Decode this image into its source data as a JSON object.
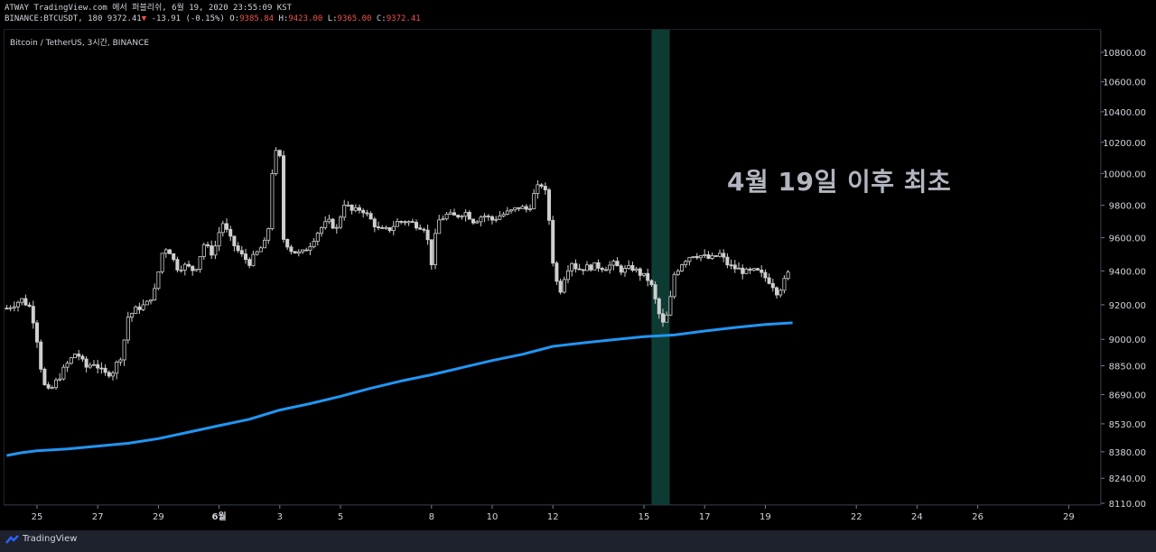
{
  "header": {
    "line1": "ATWAY TradingView.com 에서 퍼블리쉬, 6월 19, 2020 23:55:09 KST",
    "symbol": "BINANCE:BTCUSDT, 180",
    "last": "9372.41",
    "change_arrow": "▼",
    "change": "-13.91 (-0.15%)",
    "o_label": "O:",
    "o_val": "9385.84",
    "h_label": "H:",
    "h_val": "9423.00",
    "l_label": "L:",
    "l_val": "9365.00",
    "c_label": "C:",
    "c_val": "9372.41"
  },
  "pane_title": "Bitcoin / TetherUS, 3시간, BINANCE",
  "annotation": "4월 19일 이후 최초",
  "footer": {
    "brand": "TradingView"
  },
  "colors": {
    "background": "#000000",
    "candle_body": "#cfcfcf",
    "moving_average": "#2196f3",
    "highlight_band": "#0d3b34",
    "down": "#ef5350"
  },
  "chart_data": {
    "type": "candlestick",
    "interval": "3시간",
    "y_axis": {
      "ticks": [
        10800,
        10600,
        10400,
        10200,
        10000,
        9800,
        9600,
        9400,
        9200,
        9000,
        8850,
        8690,
        8530,
        8380,
        8240,
        8110
      ],
      "scale": "log"
    },
    "x_axis": {
      "ticks": [
        {
          "label": "25",
          "day": 25
        },
        {
          "label": "27",
          "day": 27
        },
        {
          "label": "29",
          "day": 29
        },
        {
          "label": "6월",
          "day": 31,
          "bold": true
        },
        {
          "label": "3",
          "day": 33
        },
        {
          "label": "5",
          "day": 35
        },
        {
          "label": "8",
          "day": 38
        },
        {
          "label": "10",
          "day": 40
        },
        {
          "label": "12",
          "day": 42
        },
        {
          "label": "15",
          "day": 45
        },
        {
          "label": "17",
          "day": 47
        },
        {
          "label": "19",
          "day": 49
        },
        {
          "label": "22",
          "day": 52
        },
        {
          "label": "24",
          "day": 54
        },
        {
          "label": "26",
          "day": 56
        },
        {
          "label": "29",
          "day": 59
        }
      ]
    },
    "highlight": {
      "from_day": 45.25,
      "to_day": 45.85
    },
    "close_path": [
      [
        24.0,
        9180
      ],
      [
        24.5,
        9230
      ],
      [
        24.8,
        9180
      ],
      [
        25.0,
        9000
      ],
      [
        25.2,
        8750
      ],
      [
        25.4,
        8700
      ],
      [
        25.7,
        8780
      ],
      [
        26.0,
        8860
      ],
      [
        26.3,
        8930
      ],
      [
        26.6,
        8840
      ],
      [
        26.9,
        8870
      ],
      [
        27.2,
        8800
      ],
      [
        27.5,
        8820
      ],
      [
        27.8,
        8920
      ],
      [
        28.0,
        9130
      ],
      [
        28.3,
        9180
      ],
      [
        28.6,
        9200
      ],
      [
        28.9,
        9290
      ],
      [
        29.1,
        9500
      ],
      [
        29.3,
        9550
      ],
      [
        29.6,
        9420
      ],
      [
        29.9,
        9430
      ],
      [
        30.2,
        9400
      ],
      [
        30.5,
        9560
      ],
      [
        30.8,
        9500
      ],
      [
        31.1,
        9700
      ],
      [
        31.4,
        9580
      ],
      [
        31.7,
        9500
      ],
      [
        32.0,
        9450
      ],
      [
        32.3,
        9520
      ],
      [
        32.6,
        9590
      ],
      [
        32.8,
        10150
      ],
      [
        33.0,
        10100
      ],
      [
        33.1,
        9600
      ],
      [
        33.4,
        9520
      ],
      [
        33.7,
        9500
      ],
      [
        34.0,
        9560
      ],
      [
        34.3,
        9650
      ],
      [
        34.6,
        9700
      ],
      [
        34.9,
        9650
      ],
      [
        35.1,
        9820
      ],
      [
        35.4,
        9760
      ],
      [
        35.7,
        9780
      ],
      [
        36.0,
        9710
      ],
      [
        36.3,
        9640
      ],
      [
        36.6,
        9650
      ],
      [
        36.9,
        9700
      ],
      [
        37.2,
        9700
      ],
      [
        37.5,
        9680
      ],
      [
        37.8,
        9660
      ],
      [
        38.0,
        9450
      ],
      [
        38.2,
        9700
      ],
      [
        38.5,
        9740
      ],
      [
        38.8,
        9730
      ],
      [
        39.1,
        9760
      ],
      [
        39.4,
        9700
      ],
      [
        39.7,
        9740
      ],
      [
        40.0,
        9710
      ],
      [
        40.3,
        9740
      ],
      [
        40.6,
        9760
      ],
      [
        40.9,
        9790
      ],
      [
        41.2,
        9770
      ],
      [
        41.4,
        9880
      ],
      [
        41.6,
        9940
      ],
      [
        41.8,
        9860
      ],
      [
        42.0,
        9460
      ],
      [
        42.2,
        9260
      ],
      [
        42.4,
        9380
      ],
      [
        42.6,
        9460
      ],
      [
        42.8,
        9410
      ],
      [
        43.1,
        9420
      ],
      [
        43.4,
        9430
      ],
      [
        43.7,
        9420
      ],
      [
        44.0,
        9440
      ],
      [
        44.3,
        9400
      ],
      [
        44.6,
        9420
      ],
      [
        44.9,
        9380
      ],
      [
        45.2,
        9340
      ],
      [
        45.4,
        9210
      ],
      [
        45.6,
        9080
      ],
      [
        45.8,
        9150
      ],
      [
        46.0,
        9380
      ],
      [
        46.3,
        9460
      ],
      [
        46.6,
        9500
      ],
      [
        46.9,
        9490
      ],
      [
        47.2,
        9470
      ],
      [
        47.5,
        9500
      ],
      [
        47.8,
        9430
      ],
      [
        48.1,
        9410
      ],
      [
        48.4,
        9390
      ],
      [
        48.7,
        9400
      ],
      [
        49.0,
        9360
      ],
      [
        49.2,
        9330
      ],
      [
        49.4,
        9270
      ],
      [
        49.6,
        9330
      ],
      [
        49.8,
        9400
      ]
    ],
    "moving_average": [
      [
        24.0,
        8360
      ],
      [
        24.5,
        8375
      ],
      [
        25.0,
        8385
      ],
      [
        26.0,
        8395
      ],
      [
        27.0,
        8410
      ],
      [
        28.0,
        8425
      ],
      [
        29.0,
        8450
      ],
      [
        30.0,
        8485
      ],
      [
        31.0,
        8520
      ],
      [
        32.0,
        8555
      ],
      [
        33.0,
        8605
      ],
      [
        34.0,
        8640
      ],
      [
        35.0,
        8680
      ],
      [
        36.0,
        8725
      ],
      [
        37.0,
        8765
      ],
      [
        38.0,
        8800
      ],
      [
        39.0,
        8840
      ],
      [
        40.0,
        8880
      ],
      [
        41.0,
        8915
      ],
      [
        42.0,
        8960
      ],
      [
        43.0,
        8980
      ],
      [
        44.0,
        8998
      ],
      [
        45.0,
        9015
      ],
      [
        46.0,
        9025
      ],
      [
        47.0,
        9048
      ],
      [
        48.0,
        9068
      ],
      [
        49.0,
        9085
      ],
      [
        49.9,
        9095
      ]
    ]
  }
}
